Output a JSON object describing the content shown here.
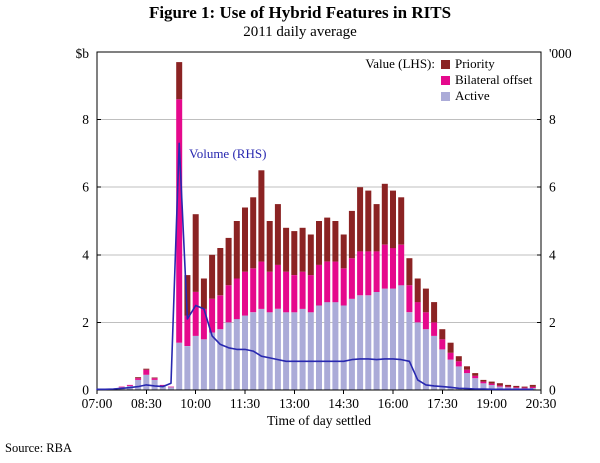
{
  "figure": {
    "title": "Figure 1: Use of Hybrid Features in RITS",
    "subtitle": "2011 daily average",
    "xlabel": "Time of day settled",
    "source": "Source: RBA",
    "left_axis_unit": "$b",
    "right_axis_unit": "'000"
  },
  "legend": {
    "heading": "Value (LHS):",
    "items": [
      {
        "label": "Priority",
        "color": "#8b2323"
      },
      {
        "label": "Bilateral offset",
        "color": "#e5098c"
      },
      {
        "label": "Active",
        "color": "#ababd8"
      }
    ]
  },
  "annotation": {
    "text": "Volume (RHS)",
    "color": "#2828b0"
  },
  "chart_data": {
    "type": "bar",
    "stacked": true,
    "title": "Figure 1: Use of Hybrid Features in RITS",
    "subtitle": "2011 daily average",
    "xlabel": "Time of day settled",
    "left_ylabel": "$b",
    "right_ylabel": "'000",
    "ylim": [
      0,
      10
    ],
    "yticks": [
      0,
      2,
      4,
      6,
      8
    ],
    "xtick_labels": [
      "07:00",
      "08:30",
      "10:00",
      "11:30",
      "13:00",
      "14:30",
      "16:00",
      "17:30",
      "19:00",
      "20:30"
    ],
    "x_range_hours": [
      7,
      20.5
    ],
    "grid_color": "#bfbfbf",
    "x": [
      "07:00",
      "07:15",
      "07:30",
      "07:45",
      "08:00",
      "08:15",
      "08:30",
      "08:45",
      "09:00",
      "09:15",
      "09:30",
      "09:45",
      "10:00",
      "10:15",
      "10:30",
      "10:45",
      "11:00",
      "11:15",
      "11:30",
      "11:45",
      "12:00",
      "12:15",
      "12:30",
      "12:45",
      "13:00",
      "13:15",
      "13:30",
      "13:45",
      "14:00",
      "14:15",
      "14:30",
      "14:45",
      "15:00",
      "15:15",
      "15:30",
      "15:45",
      "16:00",
      "16:15",
      "16:30",
      "16:45",
      "17:00",
      "17:15",
      "17:30",
      "17:45",
      "18:00",
      "18:15",
      "18:30",
      "18:45",
      "19:00",
      "19:15",
      "19:30",
      "19:45",
      "20:00",
      "20:15"
    ],
    "series": [
      {
        "name": "Active",
        "type": "bar",
        "axis": "left",
        "color": "#ababd8",
        "values": [
          0,
          0.02,
          0.04,
          0.08,
          0.12,
          0.3,
          0.45,
          0.3,
          0.12,
          0.08,
          1.4,
          1.3,
          1.6,
          1.5,
          1.7,
          1.8,
          2.0,
          2.1,
          2.2,
          2.3,
          2.4,
          2.3,
          2.4,
          2.3,
          2.3,
          2.4,
          2.3,
          2.5,
          2.6,
          2.6,
          2.5,
          2.7,
          2.8,
          2.8,
          2.9,
          3.0,
          3.0,
          3.1,
          2.3,
          2.0,
          1.8,
          1.6,
          1.2,
          0.9,
          0.7,
          0.5,
          0.35,
          0.2,
          0.15,
          0.1,
          0.08,
          0.06,
          0.05,
          0.06
        ]
      },
      {
        "name": "Bilateral offset",
        "type": "bar",
        "axis": "left",
        "color": "#e5098c",
        "values": [
          0,
          0,
          0,
          0.02,
          0.03,
          0.05,
          0.15,
          0.05,
          0.03,
          0.02,
          7.2,
          0.9,
          1.3,
          0.9,
          1.0,
          1.0,
          1.1,
          1.2,
          1.3,
          1.3,
          1.4,
          1.2,
          1.3,
          1.2,
          1.1,
          1.1,
          1.1,
          1.2,
          1.2,
          1.2,
          1.1,
          1.2,
          1.3,
          1.3,
          1.2,
          1.3,
          1.2,
          1.2,
          0.8,
          0.6,
          0.5,
          0.4,
          0.3,
          0.2,
          0.15,
          0.1,
          0.07,
          0.05,
          0.04,
          0.03,
          0.02,
          0.02,
          0.02,
          0.03
        ]
      },
      {
        "name": "Priority",
        "type": "bar",
        "axis": "left",
        "color": "#8b2323",
        "values": [
          0,
          0,
          0,
          0,
          0,
          0.03,
          0.03,
          0.02,
          0,
          0,
          1.1,
          1.2,
          2.3,
          0.9,
          1.3,
          1.4,
          1.4,
          1.7,
          1.9,
          2.1,
          2.7,
          1.5,
          1.8,
          1.3,
          1.3,
          1.3,
          1.2,
          1.3,
          1.3,
          1.2,
          1.0,
          1.4,
          1.9,
          1.8,
          1.4,
          1.8,
          1.7,
          1.4,
          0.8,
          0.7,
          0.7,
          0.6,
          0.3,
          0.3,
          0.15,
          0.1,
          0.08,
          0.05,
          0.06,
          0.07,
          0.05,
          0.04,
          0.03,
          0.06
        ]
      },
      {
        "name": "Volume",
        "type": "line",
        "axis": "right",
        "color": "#2828b0",
        "values": [
          0.02,
          0.02,
          0.03,
          0.05,
          0.07,
          0.1,
          0.15,
          0.12,
          0.1,
          0.2,
          7.3,
          2.1,
          2.5,
          2.4,
          1.6,
          1.35,
          1.25,
          1.2,
          1.2,
          1.15,
          1.0,
          0.95,
          0.9,
          0.85,
          0.85,
          0.85,
          0.85,
          0.85,
          0.85,
          0.85,
          0.85,
          0.9,
          0.92,
          0.92,
          0.9,
          0.92,
          0.92,
          0.9,
          0.85,
          0.3,
          0.15,
          0.12,
          0.1,
          0.08,
          0.05,
          0.04,
          0.03,
          0.03,
          0.02,
          0.02,
          0.02,
          0.02,
          0.02,
          0.02
        ]
      }
    ]
  }
}
